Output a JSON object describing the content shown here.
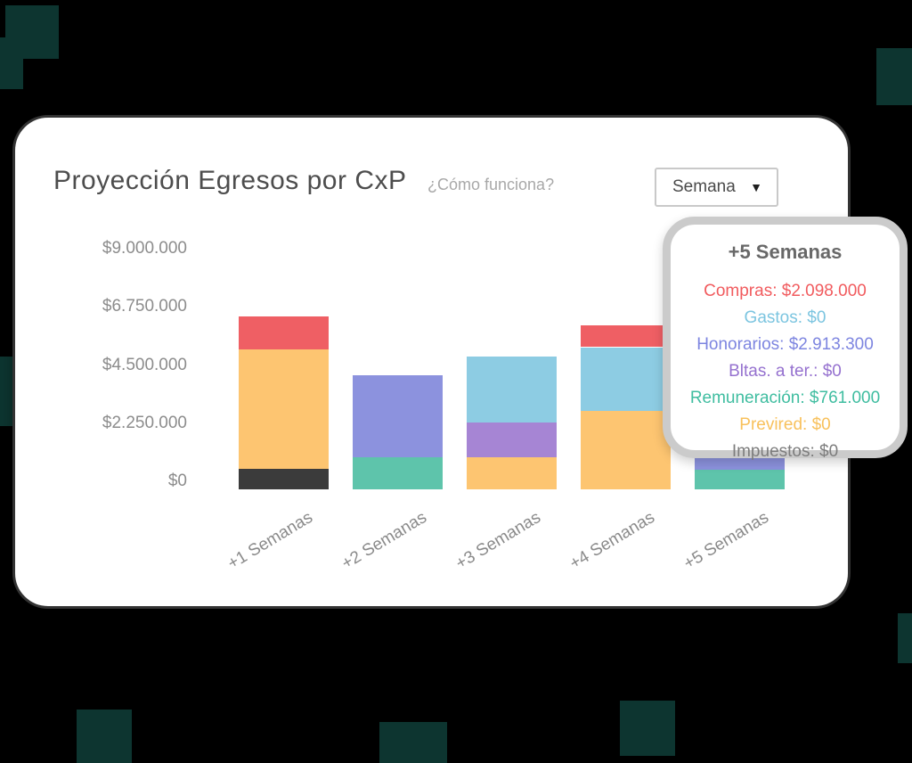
{
  "header": {
    "title": "Proyección Egresos por CxP",
    "help_link": "¿Cómo funciona?",
    "period_selector": {
      "value": "Semana",
      "caret": "▼"
    }
  },
  "chart_data": {
    "type": "bar",
    "stacked": true,
    "title": "Proyección Egresos por CxP",
    "categories": [
      "+1 Semanas",
      "+2 Semanas",
      "+3 Semanas",
      "+4 Semanas",
      "+5 Semanas"
    ],
    "series": [
      {
        "name": "Impuestos",
        "color": "#3b3b3b",
        "values": [
          800000,
          0,
          0,
          0,
          0
        ]
      },
      {
        "name": "Previred",
        "color": "#fdc571",
        "values": [
          4600000,
          0,
          1250000,
          3050000,
          0
        ]
      },
      {
        "name": "Remuneración",
        "color": "#5ec4ab",
        "values": [
          0,
          1250000,
          0,
          0,
          761000
        ]
      },
      {
        "name": "Bltas. a ter.",
        "color": "#a685d4",
        "values": [
          0,
          0,
          1350000,
          0,
          0
        ]
      },
      {
        "name": "Honorarios",
        "color": "#8c92de",
        "values": [
          0,
          3150000,
          0,
          0,
          2913300
        ]
      },
      {
        "name": "Gastos",
        "color": "#8dcce3",
        "values": [
          0,
          0,
          2550000,
          2450000,
          0
        ]
      },
      {
        "name": "Compras",
        "color": "#ef5f64",
        "values": [
          1300000,
          0,
          0,
          850000,
          2098000
        ]
      }
    ],
    "y_ticks": [
      {
        "label": "$9.000.000",
        "value": 9000000
      },
      {
        "label": "$6.750.000",
        "value": 6750000
      },
      {
        "label": "$4.500.000",
        "value": 4500000
      },
      {
        "label": "$2.250.000",
        "value": 2250000
      },
      {
        "label": "$0",
        "value": 0
      }
    ],
    "ylim": [
      0,
      9000000
    ],
    "grid": false,
    "legend": false
  },
  "tooltip": {
    "title": "+5 Semanas",
    "rows": [
      {
        "label": "Compras",
        "value": "$2.098.000",
        "color": "#f15b5e"
      },
      {
        "label": "Gastos",
        "value": "$0",
        "color": "#7cc5e0"
      },
      {
        "label": "Honorarios",
        "value": "$2.913.300",
        "color": "#7d85e0"
      },
      {
        "label": "Bltas. a ter.",
        "value": "$0",
        "color": "#9571cf"
      },
      {
        "label": "Remuneración",
        "value": "$761.000",
        "color": "#3fbda0"
      },
      {
        "label": "Previred",
        "value": "$0",
        "color": "#f8c15c"
      },
      {
        "label": "Impuestos",
        "value": "$0",
        "color": "#7d7d7d"
      }
    ]
  }
}
